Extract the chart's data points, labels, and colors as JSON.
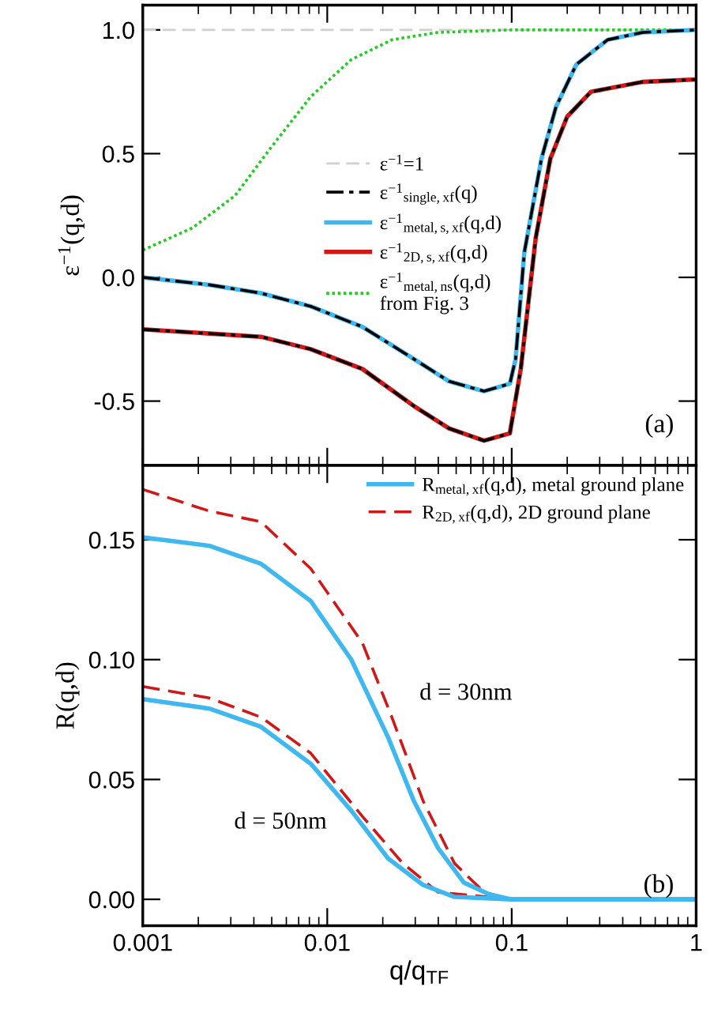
{
  "chart_data": [
    {
      "type": "line",
      "ylabel": "ε$^{−1}$(q,d)",
      "log": "x",
      "xlim": [
        0.001,
        1
      ],
      "xticks": [
        0.001,
        0.01,
        0.1,
        1
      ],
      "ylim": [
        -0.76,
        1.1
      ],
      "yticks": [
        -0.5,
        {
          "value": 0,
          "label": "0.0"
        },
        0.5,
        {
          "value": 1,
          "label": "1.0"
        }
      ],
      "tick_labels": "y",
      "grid": false,
      "legend": "right",
      "ref_lines": [
        {
          "axis": "y",
          "value": 1.0,
          "label": "ε$^{−1}$=1",
          "color": "#d0d0d0",
          "line_style": "dashed"
        }
      ],
      "series": [
        {
          "name": "ε$^{−1}$$_{single,xf}$(q)",
          "color": "#000000",
          "line_style": "dashdot",
          "x": [
            0.001,
            0.00229,
            0.00437,
            0.00813,
            0.0155,
            0.0295,
            0.0457,
            0.0708,
            0.0977,
            0.105,
            0.117,
            0.145,
            0.174,
            0.224,
            0.331,
            0.513,
            1
          ],
          "values": [
            0.0,
            -0.03,
            -0.064,
            -0.117,
            -0.2,
            -0.33,
            -0.42,
            -0.46,
            -0.43,
            -0.33,
            0.1,
            0.48,
            0.69,
            0.86,
            0.96,
            0.99,
            1.0
          ]
        },
        {
          "name": "ε$^{−1}$$_{metal,s,xf}$(q,d)",
          "color": "#3fb8f0",
          "line_style": "solid",
          "x": [
            0.001,
            0.00229,
            0.00437,
            0.00813,
            0.0155,
            0.0295,
            0.0457,
            0.0708,
            0.0977,
            0.105,
            0.117,
            0.145,
            0.174,
            0.224,
            0.331,
            0.513,
            1
          ],
          "values": [
            0.0,
            -0.03,
            -0.064,
            -0.117,
            -0.2,
            -0.33,
            -0.42,
            -0.46,
            -0.43,
            -0.33,
            0.1,
            0.48,
            0.69,
            0.86,
            0.96,
            0.99,
            1.0
          ]
        },
        {
          "name": "ε$^{−1}$$_{2D,s,xf}$(q,d)",
          "color": "#d01818",
          "line_style": "solid",
          "x": [
            0.001,
            0.00437,
            0.00813,
            0.0155,
            0.0295,
            0.0457,
            0.0708,
            0.0977,
            0.112,
            0.135,
            0.162,
            0.2,
            0.269,
            0.513,
            1
          ],
          "values": [
            -0.21,
            -0.24,
            -0.29,
            -0.37,
            -0.52,
            -0.61,
            -0.66,
            -0.63,
            -0.37,
            0.16,
            0.48,
            0.65,
            0.75,
            0.79,
            0.8
          ]
        },
        {
          "color": "#000000",
          "line_style": "dashdot",
          "x": [
            0.001,
            0.00437,
            0.00813,
            0.0155,
            0.0295,
            0.0457,
            0.0708,
            0.0977,
            0.112,
            0.135,
            0.162,
            0.2,
            0.269,
            0.513,
            1
          ],
          "values": [
            -0.21,
            -0.24,
            -0.29,
            -0.37,
            -0.52,
            -0.61,
            -0.66,
            -0.63,
            -0.37,
            0.16,
            0.48,
            0.65,
            0.75,
            0.79,
            0.8
          ]
        },
        {
          "name": "ε$^{−1}$$_{metal,ns}$(q,d)\nfrom Fig. 3",
          "color": "#22cc22",
          "line_style": "dotted",
          "x": [
            0.001,
            0.00186,
            0.00316,
            0.0049,
            0.00813,
            0.0135,
            0.0224,
            0.0398,
            0.1,
            1
          ],
          "values": [
            0.11,
            0.2,
            0.33,
            0.52,
            0.73,
            0.88,
            0.96,
            0.99,
            1.0,
            1.0
          ]
        }
      ],
      "annotations": [
        "(a)"
      ]
    },
    {
      "type": "line",
      "xlabel": "q/q$_{TF}$",
      "ylabel": "R(q,d)",
      "log": "x",
      "xlim": [
        0.001,
        1
      ],
      "xticks": [
        0.001,
        0.01,
        0.1,
        {
          "value": 1,
          "label": "1"
        }
      ],
      "ylim": [
        -0.011,
        0.181
      ],
      "yticks": [
        {
          "value": 0,
          "label": "0.00"
        },
        0.05,
        {
          "value": 0.1,
          "label": "0.10"
        },
        0.15
      ],
      "grid": false,
      "legend": "top right",
      "series": [
        {
          "name": "R$_{metal,xf}$(q,d), metal ground plane",
          "color": "#3fb8f0",
          "line_style": "solid",
          "x": [
            0.001,
            0.00229,
            0.00437,
            0.00813,
            0.0135,
            0.0214,
            0.0295,
            0.0398,
            0.055,
            0.0759,
            0.1,
            1
          ],
          "values": [
            0.151,
            0.1475,
            0.14,
            0.1245,
            0.1,
            0.0675,
            0.041,
            0.0215,
            0.007,
            0.002,
            0.0,
            0.0
          ]
        },
        {
          "name": "R$_{2D,xf}$(q,d), 2D ground plane",
          "color": "#d01818",
          "line_style": "dashed",
          "x": [
            0.001,
            0.00229,
            0.00437,
            0.00813,
            0.0155,
            0.0224,
            0.0331,
            0.049,
            0.0708,
            0.1,
            1
          ],
          "values": [
            0.171,
            0.162,
            0.1575,
            0.138,
            0.107,
            0.076,
            0.041,
            0.015,
            0.003,
            0.0,
            0.0
          ]
        },
        {
          "color": "#3fb8f0",
          "line_style": "solid",
          "x": [
            0.001,
            0.00229,
            0.00437,
            0.00813,
            0.0135,
            0.0214,
            0.0331,
            0.049,
            0.1,
            1
          ],
          "values": [
            0.0835,
            0.0796,
            0.072,
            0.0566,
            0.037,
            0.017,
            0.006,
            0.001,
            0.0,
            0.0
          ]
        },
        {
          "color": "#d01818",
          "line_style": "dashed",
          "x": [
            0.001,
            0.00229,
            0.00437,
            0.00813,
            0.0155,
            0.0257,
            0.0398,
            0.1,
            1
          ],
          "values": [
            0.0888,
            0.084,
            0.076,
            0.061,
            0.0346,
            0.015,
            0.003,
            0.0,
            0.0
          ]
        }
      ],
      "annotations": [
        "(b)",
        "d = 30nm",
        "d = 50nm"
      ]
    }
  ]
}
